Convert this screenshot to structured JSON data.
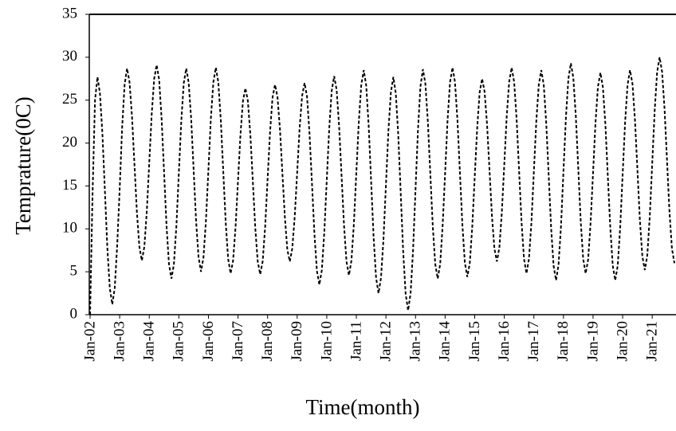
{
  "chart_data": {
    "type": "line",
    "x_label": "Time(month)",
    "y_label": "Temprature(0C)",
    "categories": [
      "Jan-02",
      null,
      null,
      null,
      null,
      null,
      null,
      null,
      null,
      null,
      null,
      null,
      "Jan-03",
      null,
      null,
      null,
      null,
      null,
      null,
      null,
      null,
      null,
      null,
      null,
      "Jan-04",
      null,
      null,
      null,
      null,
      null,
      null,
      null,
      null,
      null,
      null,
      null,
      "Jan-05",
      null,
      null,
      null,
      null,
      null,
      null,
      null,
      null,
      null,
      null,
      null,
      "Jan-06",
      null,
      null,
      null,
      null,
      null,
      null,
      null,
      null,
      null,
      null,
      null,
      "Jan-07",
      null,
      null,
      null,
      null,
      null,
      null,
      null,
      null,
      null,
      null,
      null,
      "Jan-08",
      null,
      null,
      null,
      null,
      null,
      null,
      null,
      null,
      null,
      null,
      null,
      "Jan-09",
      null,
      null,
      null,
      null,
      null,
      null,
      null,
      null,
      null,
      null,
      null,
      "Jan-10",
      null,
      null,
      null,
      null,
      null,
      null,
      null,
      null,
      null,
      null,
      null,
      "Jan-11",
      null,
      null,
      null,
      null,
      null,
      null,
      null,
      null,
      null,
      null,
      null,
      "Jan-12",
      null,
      null,
      null,
      null,
      null,
      null,
      null,
      null,
      null,
      null,
      null,
      "Jan-13",
      null,
      null,
      null,
      null,
      null,
      null,
      null,
      null,
      null,
      null,
      null,
      "Jan-14",
      null,
      null,
      null,
      null,
      null,
      null,
      null,
      null,
      null,
      null,
      null,
      "Jan-15",
      null,
      null,
      null,
      null,
      null,
      null,
      null,
      null,
      null,
      null,
      null,
      "Jan-16",
      null,
      null,
      null,
      null,
      null,
      null,
      null,
      null,
      null,
      null,
      null,
      "Jan-17",
      null,
      null,
      null,
      null,
      null,
      null,
      null,
      null,
      null,
      null,
      null,
      "Jan-18",
      null,
      null,
      null,
      null,
      null,
      null,
      null,
      null,
      null,
      null,
      null,
      "Jan-19",
      null,
      null,
      null,
      null,
      null,
      null,
      null,
      null,
      null,
      null,
      null,
      "Jan-20",
      null,
      null,
      null,
      null,
      null,
      null,
      null,
      null,
      null,
      null,
      null,
      "Jan-21",
      null,
      null,
      null,
      null,
      null,
      null,
      null,
      null,
      null
    ],
    "values": [
      0,
      14,
      25,
      27.7,
      25.8,
      21.1,
      14.5,
      7.8,
      3.1,
      1.2,
      3.1,
      8.1,
      14.6,
      21.8,
      26.8,
      28.7,
      27.1,
      23.1,
      17.5,
      11.9,
      7.9,
      6.3,
      7.9,
      12.0,
      17.7,
      23.4,
      27.5,
      29.1,
      27.4,
      22.9,
      16.7,
      10.4,
      5.9,
      4.2,
      5.9,
      10.3,
      16.5,
      22.6,
      27.0,
      28.7,
      27.0,
      22.8,
      16.9,
      10.9,
      6.7,
      5.0,
      6.7,
      11.0,
      16.9,
      22.9,
      27.1,
      28.8,
      27.1,
      22.8,
      16.8,
      10.8,
      6.5,
      4.8,
      6.3,
      10.2,
      15.6,
      21.0,
      24.9,
      26.4,
      24.9,
      21.0,
      15.6,
      10.1,
      6.2,
      4.7,
      6.2,
      10.2,
      15.8,
      21.3,
      25.3,
      26.8,
      25.4,
      21.7,
      16.5,
      11.4,
      7.6,
      6.2,
      7.7,
      11.4,
      16.6,
      21.8,
      25.5,
      27.0,
      25.4,
      21.1,
      15.3,
      9.4,
      5.1,
      3.5,
      5.2,
      9.6,
      15.7,
      21.7,
      26.1,
      27.8,
      26.2,
      22.0,
      16.2,
      10.4,
      6.2,
      4.6,
      6.3,
      10.6,
      16.6,
      22.5,
      26.8,
      28.5,
      26.7,
      22.0,
      15.5,
      9.0,
      4.3,
      2.5,
      4.3,
      8.8,
      15.1,
      21.4,
      25.9,
      27.7,
      25.8,
      20.9,
      14.1,
      7.3,
      2.4,
      0.5,
      2.5,
      7.5,
      14.6,
      21.6,
      26.6,
      28.6,
      26.9,
      22.5,
      16.4,
      10.3,
      5.9,
      4.2,
      5.9,
      10.4,
      16.5,
      22.7,
      27.1,
      28.8,
      27.1,
      22.7,
      16.6,
      10.5,
      6.1,
      4.4,
      6.0,
      10.2,
      16.0,
      21.7,
      25.9,
      27.5,
      26.0,
      22.2,
      16.9,
      11.5,
      7.7,
      6.2,
      7.8,
      11.9,
      17.5,
      23.2,
      27.2,
      28.8,
      27.1,
      22.8,
      16.8,
      10.8,
      6.5,
      4.8,
      6.5,
      10.7,
      16.7,
      22.6,
      26.8,
      28.5,
      26.8,
      22.4,
      16.3,
      10.1,
      5.7,
      4.0,
      5.8,
      10.3,
      16.7,
      23.0,
      27.5,
      29.3,
      27.6,
      23.2,
      17.1,
      10.9,
      6.5,
      4.8,
      6.4,
      10.7,
      16.5,
      22.4,
      26.6,
      28.2,
      26.5,
      22.2,
      16.1,
      10.1,
      5.7,
      4.0,
      5.7,
      10.1,
      16.3,
      22.4,
      26.8,
      28.5,
      26.9,
      22.7,
      16.9,
      11.0,
      6.8,
      5.2,
      6.9,
      11.4,
      17.6,
      23.8,
      28.3,
      30.0,
      28.3,
      24.0,
      18.0,
      12.0,
      7.7,
      6.0
    ],
    "color": "#000000",
    "line_style": "dashed",
    "ylim": [
      0,
      35
    ],
    "yticks": [
      0,
      5,
      10,
      15,
      20,
      25,
      30,
      35
    ],
    "grid": false
  }
}
